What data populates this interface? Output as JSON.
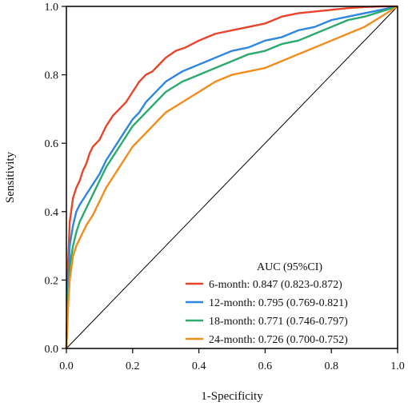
{
  "chart_data": {
    "type": "line",
    "title": "",
    "xlabel": "1-Specificity",
    "ylabel": "Sensitivity",
    "xlim": [
      0,
      1
    ],
    "ylim": [
      0,
      1
    ],
    "x_ticks": [
      "0.0",
      "0.2",
      "0.4",
      "0.6",
      "0.8",
      "1.0"
    ],
    "y_ticks": [
      "0.0",
      "0.2",
      "0.4",
      "0.6",
      "0.8",
      "1.0"
    ],
    "grid": false,
    "legend_title": "AUC (95%CI)",
    "legend_position": "bottom-right",
    "reference_line": {
      "x": [
        0,
        1
      ],
      "y": [
        0,
        1
      ],
      "color": "#000000"
    },
    "series": [
      {
        "name": "6-month: 0.847 (0.823-0.872)",
        "color": "#E8442C",
        "x": [
          0,
          0.005,
          0.01,
          0.02,
          0.03,
          0.04,
          0.05,
          0.06,
          0.07,
          0.08,
          0.1,
          0.12,
          0.14,
          0.16,
          0.18,
          0.2,
          0.22,
          0.24,
          0.26,
          0.28,
          0.3,
          0.33,
          0.36,
          0.4,
          0.45,
          0.5,
          0.55,
          0.6,
          0.65,
          0.7,
          0.75,
          0.8,
          0.85,
          0.9,
          0.95,
          1.0
        ],
        "y": [
          0,
          0.25,
          0.37,
          0.44,
          0.47,
          0.49,
          0.52,
          0.54,
          0.57,
          0.59,
          0.61,
          0.65,
          0.68,
          0.7,
          0.72,
          0.75,
          0.78,
          0.8,
          0.81,
          0.83,
          0.85,
          0.87,
          0.88,
          0.9,
          0.92,
          0.93,
          0.94,
          0.95,
          0.97,
          0.98,
          0.985,
          0.99,
          0.995,
          0.998,
          1.0,
          1.0
        ]
      },
      {
        "name": "12-month: 0.795 (0.769-0.821)",
        "color": "#2E86E0",
        "x": [
          0,
          0.005,
          0.01,
          0.02,
          0.03,
          0.04,
          0.06,
          0.08,
          0.1,
          0.12,
          0.14,
          0.16,
          0.18,
          0.2,
          0.22,
          0.24,
          0.26,
          0.28,
          0.3,
          0.35,
          0.4,
          0.45,
          0.5,
          0.55,
          0.6,
          0.65,
          0.7,
          0.75,
          0.8,
          0.85,
          0.9,
          0.95,
          1.0
        ],
        "y": [
          0,
          0.18,
          0.3,
          0.36,
          0.4,
          0.42,
          0.45,
          0.48,
          0.51,
          0.55,
          0.58,
          0.61,
          0.64,
          0.67,
          0.69,
          0.72,
          0.74,
          0.76,
          0.78,
          0.81,
          0.83,
          0.85,
          0.87,
          0.88,
          0.9,
          0.91,
          0.93,
          0.94,
          0.96,
          0.97,
          0.98,
          0.99,
          1.0
        ]
      },
      {
        "name": "18-month: 0.771 (0.746-0.797)",
        "color": "#2BAA6E",
        "x": [
          0,
          0.005,
          0.01,
          0.02,
          0.03,
          0.04,
          0.06,
          0.08,
          0.1,
          0.12,
          0.14,
          0.16,
          0.18,
          0.2,
          0.22,
          0.24,
          0.26,
          0.28,
          0.3,
          0.35,
          0.4,
          0.45,
          0.5,
          0.55,
          0.6,
          0.65,
          0.7,
          0.75,
          0.8,
          0.85,
          0.9,
          0.95,
          1.0
        ],
        "y": [
          0,
          0.15,
          0.24,
          0.3,
          0.34,
          0.37,
          0.41,
          0.45,
          0.49,
          0.53,
          0.56,
          0.59,
          0.62,
          0.65,
          0.67,
          0.69,
          0.71,
          0.73,
          0.75,
          0.78,
          0.8,
          0.82,
          0.84,
          0.86,
          0.87,
          0.89,
          0.9,
          0.92,
          0.94,
          0.96,
          0.97,
          0.985,
          1.0
        ]
      },
      {
        "name": "24-month: 0.726 (0.700-0.752)",
        "color": "#F28C1E",
        "x": [
          0,
          0.005,
          0.01,
          0.02,
          0.03,
          0.04,
          0.06,
          0.08,
          0.1,
          0.12,
          0.14,
          0.16,
          0.18,
          0.2,
          0.22,
          0.24,
          0.26,
          0.28,
          0.3,
          0.35,
          0.4,
          0.45,
          0.5,
          0.55,
          0.6,
          0.65,
          0.7,
          0.75,
          0.8,
          0.85,
          0.9,
          0.95,
          1.0
        ],
        "y": [
          0,
          0.12,
          0.2,
          0.27,
          0.3,
          0.32,
          0.36,
          0.39,
          0.43,
          0.47,
          0.5,
          0.53,
          0.56,
          0.59,
          0.61,
          0.63,
          0.65,
          0.67,
          0.69,
          0.72,
          0.75,
          0.78,
          0.8,
          0.81,
          0.82,
          0.84,
          0.86,
          0.88,
          0.9,
          0.92,
          0.94,
          0.97,
          1.0
        ]
      }
    ]
  }
}
